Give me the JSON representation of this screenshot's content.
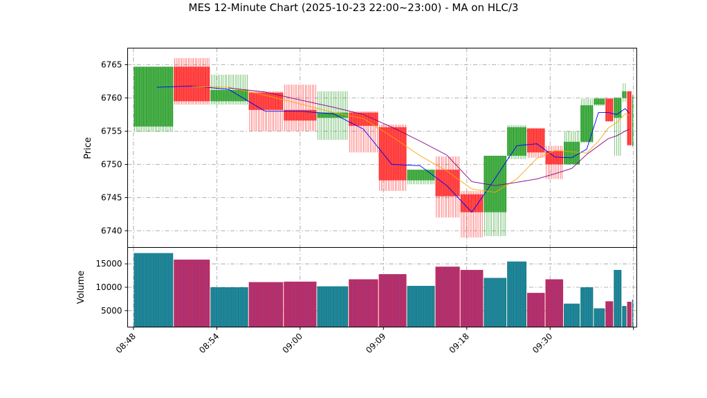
{
  "chart_data": {
    "type": "candlestick",
    "title": "MES 12-Minute Chart (2025-10-23 22:00~23:00) - MA on HLC/3",
    "price_ylabel": "Price",
    "volume_ylabel": "Volume",
    "price_ylim": [
      6737.5,
      6767.5
    ],
    "price_ticks": [
      6740,
      6745,
      6750,
      6755,
      6760,
      6765
    ],
    "volume_ylim": [
      1500,
      18500
    ],
    "volume_ticks": [
      5000,
      10000,
      15000
    ],
    "volume_tick_labels": [
      "5000",
      "10000",
      "15000"
    ],
    "x_range": [
      -0.35,
      30.2
    ],
    "x_ticks": [
      {
        "pos": 0,
        "label": "08:48"
      },
      {
        "pos": 5,
        "label": "08:54"
      },
      {
        "pos": 10,
        "label": "09:00"
      },
      {
        "pos": 15,
        "label": "09:09"
      },
      {
        "pos": 20,
        "label": "09:18"
      },
      {
        "pos": 25,
        "label": "09:30"
      },
      {
        "pos": 30,
        "label": ""
      }
    ],
    "grid": true,
    "colors": {
      "up": "#2ca02c",
      "down": "#ff2a2a",
      "ma_fast": "#0000ff",
      "ma_mid": "#ffa500",
      "ma_slow": "#800080",
      "vol_up": "#1a7f8a",
      "vol_down": "#c0285a"
    },
    "candles": [
      {
        "start": 0.0,
        "end": 2.4,
        "open": 6755.7,
        "high": 6764.7,
        "low": 6754.9,
        "close": 6764.7,
        "volume": 17300
      },
      {
        "start": 2.4,
        "end": 4.6,
        "open": 6764.7,
        "high": 6766.0,
        "low": 6759.0,
        "close": 6759.5,
        "volume": 15900
      },
      {
        "start": 4.6,
        "end": 6.9,
        "open": 6759.5,
        "high": 6763.5,
        "low": 6759.0,
        "close": 6761.2,
        "volume": 10000
      },
      {
        "start": 6.9,
        "end": 9.0,
        "open": 6760.8,
        "high": 6761.0,
        "low": 6755.0,
        "close": 6758.2,
        "volume": 11100
      },
      {
        "start": 9.0,
        "end": 11.0,
        "open": 6758.2,
        "high": 6762.0,
        "low": 6755.0,
        "close": 6756.6,
        "volume": 11200
      },
      {
        "start": 11.0,
        "end": 12.9,
        "open": 6757.0,
        "high": 6761.0,
        "low": 6753.7,
        "close": 6757.8,
        "volume": 10200
      },
      {
        "start": 12.9,
        "end": 14.7,
        "open": 6757.8,
        "high": 6758.0,
        "low": 6751.8,
        "close": 6755.8,
        "volume": 11700
      },
      {
        "start": 14.7,
        "end": 16.4,
        "open": 6755.6,
        "high": 6756.0,
        "low": 6746.0,
        "close": 6747.6,
        "volume": 12800
      },
      {
        "start": 16.4,
        "end": 18.1,
        "open": 6747.6,
        "high": 6749.2,
        "low": 6747.0,
        "close": 6749.2,
        "volume": 10300
      },
      {
        "start": 18.1,
        "end": 19.6,
        "open": 6749.2,
        "high": 6751.2,
        "low": 6742.0,
        "close": 6745.2,
        "volume": 14400
      },
      {
        "start": 19.6,
        "end": 21.0,
        "open": 6745.5,
        "high": 6746.0,
        "low": 6739.0,
        "close": 6742.8,
        "volume": 13700
      },
      {
        "start": 21.0,
        "end": 22.4,
        "open": 6742.8,
        "high": 6751.3,
        "low": 6739.2,
        "close": 6751.3,
        "volume": 12000
      },
      {
        "start": 22.4,
        "end": 23.6,
        "open": 6751.3,
        "high": 6755.9,
        "low": 6750.8,
        "close": 6755.6,
        "volume": 15500
      },
      {
        "start": 23.6,
        "end": 24.7,
        "open": 6755.4,
        "high": 6755.5,
        "low": 6751.0,
        "close": 6751.8,
        "volume": 8800
      },
      {
        "start": 24.7,
        "end": 25.8,
        "open": 6752.0,
        "high": 6752.8,
        "low": 6747.8,
        "close": 6750.0,
        "volume": 11700
      },
      {
        "start": 25.8,
        "end": 26.8,
        "open": 6750.0,
        "high": 6755.0,
        "low": 6750.0,
        "close": 6753.4,
        "volume": 6500
      },
      {
        "start": 26.8,
        "end": 27.6,
        "open": 6753.4,
        "high": 6759.9,
        "low": 6753.2,
        "close": 6758.9,
        "volume": 10000
      },
      {
        "start": 27.6,
        "end": 28.3,
        "open": 6759.0,
        "high": 6760.0,
        "low": 6758.8,
        "close": 6759.9,
        "volume": 5500
      },
      {
        "start": 28.3,
        "end": 28.8,
        "open": 6759.9,
        "high": 6760.0,
        "low": 6756.4,
        "close": 6756.5,
        "volume": 7000
      },
      {
        "start": 28.8,
        "end": 29.3,
        "open": 6757.0,
        "high": 6760.1,
        "low": 6751.3,
        "close": 6760.0,
        "volume": 13700
      },
      {
        "start": 29.3,
        "end": 29.6,
        "open": 6760.0,
        "high": 6762.2,
        "low": 6759.4,
        "close": 6761.0,
        "volume": 6000
      },
      {
        "start": 29.6,
        "end": 29.9,
        "open": 6761.0,
        "high": 6761.0,
        "low": 6752.8,
        "close": 6752.9,
        "volume": 6900
      },
      {
        "start": 29.9,
        "end": 30.0,
        "open": 6752.8,
        "high": 6760.6,
        "low": 6752.6,
        "close": 6760.2,
        "volume": 7400
      }
    ],
    "series": [
      {
        "color": "#0000ff",
        "points": [
          [
            1.4,
            6761.6
          ],
          [
            3.5,
            6761.8
          ],
          [
            5.7,
            6761.3
          ],
          [
            7.9,
            6758.0
          ],
          [
            10.0,
            6758.0
          ],
          [
            12.0,
            6757.6
          ],
          [
            13.8,
            6755.3
          ],
          [
            15.5,
            6750.0
          ],
          [
            17.2,
            6749.8
          ],
          [
            18.8,
            6746.8
          ],
          [
            20.3,
            6742.8
          ],
          [
            21.7,
            6747.9
          ],
          [
            23.0,
            6752.8
          ],
          [
            24.2,
            6753.1
          ],
          [
            25.3,
            6751.1
          ],
          [
            26.3,
            6751.0
          ],
          [
            27.2,
            6752.3
          ],
          [
            27.9,
            6757.8
          ],
          [
            28.5,
            6757.8
          ],
          [
            29.0,
            6757.5
          ],
          [
            29.5,
            6758.4
          ],
          [
            29.75,
            6757.7
          ]
        ]
      },
      {
        "color": "#ffa500",
        "points": [
          [
            3.5,
            6761.7
          ],
          [
            5.7,
            6761.6
          ],
          [
            7.9,
            6760.4
          ],
          [
            10.0,
            6759.1
          ],
          [
            12.0,
            6757.8
          ],
          [
            13.8,
            6756.9
          ],
          [
            15.5,
            6754.2
          ],
          [
            17.2,
            6751.3
          ],
          [
            18.8,
            6749.0
          ],
          [
            20.3,
            6746.3
          ],
          [
            21.7,
            6745.8
          ],
          [
            23.0,
            6747.8
          ],
          [
            24.2,
            6750.9
          ],
          [
            25.3,
            6752.1
          ],
          [
            26.3,
            6751.9
          ],
          [
            27.2,
            6751.7
          ],
          [
            27.9,
            6753.5
          ],
          [
            28.5,
            6755.5
          ],
          [
            29.0,
            6756.3
          ],
          [
            29.5,
            6757.6
          ],
          [
            29.75,
            6757.4
          ]
        ]
      },
      {
        "color": "#800080",
        "points": [
          [
            5.7,
            6761.5
          ],
          [
            7.9,
            6760.9
          ],
          [
            10.0,
            6759.7
          ],
          [
            12.0,
            6758.6
          ],
          [
            13.8,
            6757.5
          ],
          [
            15.5,
            6755.6
          ],
          [
            17.2,
            6753.5
          ],
          [
            18.8,
            6751.4
          ],
          [
            20.3,
            6747.4
          ],
          [
            21.7,
            6746.8
          ],
          [
            23.0,
            6747.3
          ],
          [
            24.2,
            6747.8
          ],
          [
            25.3,
            6748.6
          ],
          [
            26.3,
            6749.4
          ],
          [
            27.2,
            6751.5
          ],
          [
            27.9,
            6752.8
          ],
          [
            28.5,
            6753.9
          ],
          [
            29.0,
            6754.3
          ],
          [
            29.5,
            6755.0
          ],
          [
            29.75,
            6755.3
          ]
        ]
      }
    ]
  }
}
